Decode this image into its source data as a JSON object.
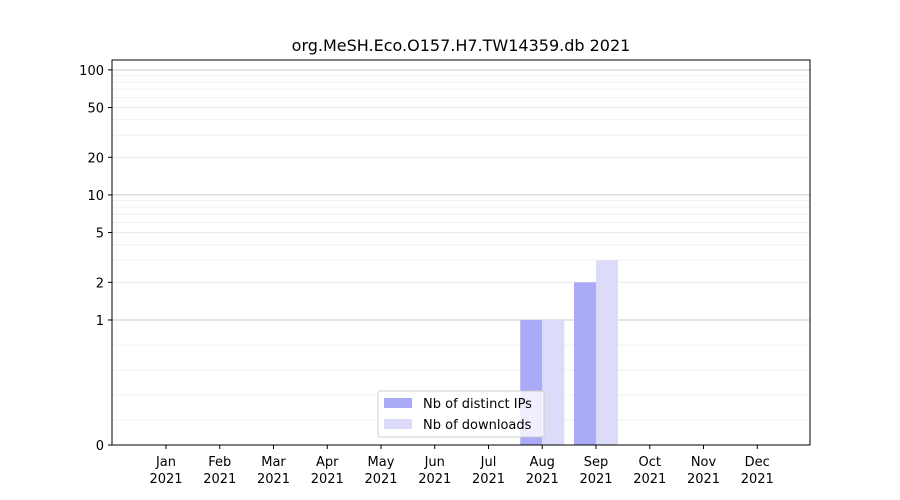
{
  "chart_data": {
    "type": "bar",
    "title": "org.MeSH.Eco.O157.H7.TW14359.db 2021",
    "xlabel": "",
    "ylabel": "",
    "categories": [
      "Jan\n2021",
      "Feb\n2021",
      "Mar\n2021",
      "Apr\n2021",
      "May\n2021",
      "Jun\n2021",
      "Jul\n2021",
      "Aug\n2021",
      "Sep\n2021",
      "Oct\n2021",
      "Nov\n2021",
      "Dec\n2021"
    ],
    "series": [
      {
        "name": "Nb of distinct IPs",
        "values": [
          0,
          0,
          0,
          0,
          0,
          0,
          0,
          1,
          2,
          0,
          0,
          0
        ],
        "color": "#aaaaf8"
      },
      {
        "name": "Nb of downloads",
        "values": [
          0,
          0,
          0,
          0,
          0,
          0,
          0,
          1,
          3,
          0,
          0,
          0
        ],
        "color": "#dcdcfa"
      }
    ],
    "yscale": "symlog",
    "yticks": [
      0,
      1,
      2,
      5,
      10,
      20,
      50,
      100
    ],
    "ylim": [
      0,
      120
    ],
    "grid": true,
    "legend_position": "lower-center"
  }
}
